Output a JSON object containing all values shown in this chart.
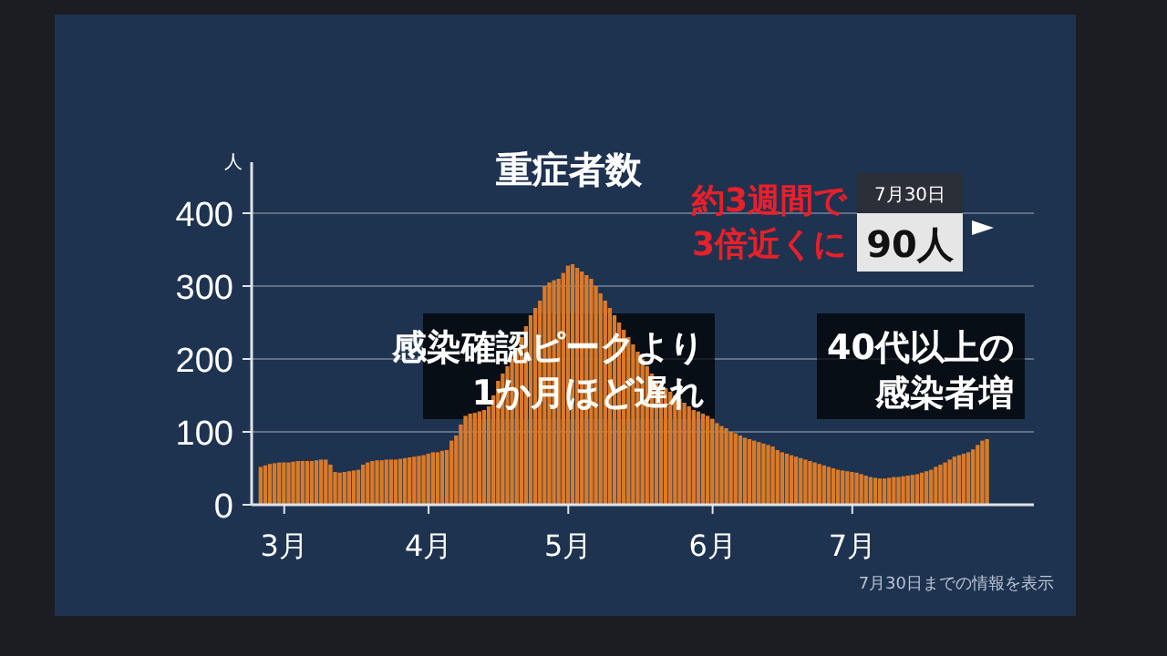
{
  "chart_data": {
    "type": "bar",
    "title": "重症者数",
    "ylabel": "人",
    "color": "#d97a2b",
    "x": [
      "--02-25",
      "--02-26",
      "--02-27",
      "--02-28",
      "--02-29",
      "--03-01",
      "--03-02",
      "--03-03",
      "--03-04",
      "--03-05",
      "--03-06",
      "--03-07",
      "--03-08",
      "--03-09",
      "--03-10",
      "--03-11",
      "--03-12",
      "--03-13",
      "--03-14",
      "--03-15",
      "--03-16",
      "--03-17",
      "--03-18",
      "--03-19",
      "--03-20",
      "--03-21",
      "--03-22",
      "--03-23",
      "--03-24",
      "--03-25",
      "--03-26",
      "--03-27",
      "--03-28",
      "--03-29",
      "--03-30",
      "--03-31",
      "--04-01",
      "--04-02",
      "--04-03",
      "--04-04",
      "--04-05",
      "--04-06",
      "--04-07",
      "--04-08",
      "--04-09",
      "--04-10",
      "--04-11",
      "--04-12",
      "--04-13",
      "--04-14",
      "--04-15",
      "--04-16",
      "--04-17",
      "--04-18",
      "--04-19",
      "--04-20",
      "--04-21",
      "--04-22",
      "--04-23",
      "--04-24",
      "--04-25",
      "--04-26",
      "--04-27",
      "--04-28",
      "--04-29",
      "--04-30",
      "--05-01",
      "--05-02",
      "--05-03",
      "--05-04",
      "--05-05",
      "--05-06",
      "--05-07",
      "--05-08",
      "--05-09",
      "--05-10",
      "--05-11",
      "--05-12",
      "--05-13",
      "--05-14",
      "--05-15",
      "--05-16",
      "--05-17",
      "--05-18",
      "--05-19",
      "--05-20",
      "--05-21",
      "--05-22",
      "--05-23",
      "--05-24",
      "--05-25",
      "--05-26",
      "--05-27",
      "--05-28",
      "--05-29",
      "--05-30",
      "--05-31",
      "--06-01",
      "--06-02",
      "--06-03",
      "--06-04",
      "--06-05",
      "--06-06",
      "--06-07",
      "--06-08",
      "--06-09",
      "--06-10",
      "--06-11",
      "--06-12",
      "--06-13",
      "--06-14",
      "--06-15",
      "--06-16",
      "--06-17",
      "--06-18",
      "--06-19",
      "--06-20",
      "--06-21",
      "--06-22",
      "--06-23",
      "--06-24",
      "--06-25",
      "--06-26",
      "--06-27",
      "--06-28",
      "--06-29",
      "--06-30",
      "--07-01",
      "--07-02",
      "--07-03",
      "--07-04",
      "--07-05",
      "--07-06",
      "--07-07",
      "--07-08",
      "--07-09",
      "--07-10",
      "--07-11",
      "--07-12",
      "--07-13",
      "--07-14",
      "--07-15",
      "--07-16",
      "--07-17",
      "--07-18",
      "--07-19",
      "--07-20",
      "--07-21",
      "--07-22",
      "--07-23",
      "--07-24",
      "--07-25",
      "--07-26",
      "--07-27",
      "--07-28",
      "--07-29",
      "--07-30"
    ],
    "values": [
      52,
      54,
      56,
      57,
      58,
      58,
      58,
      59,
      60,
      60,
      60,
      60,
      61,
      62,
      62,
      55,
      45,
      44,
      45,
      46,
      47,
      48,
      55,
      58,
      60,
      61,
      61,
      62,
      62,
      62,
      63,
      64,
      65,
      66,
      67,
      68,
      70,
      72,
      72,
      74,
      75,
      88,
      95,
      110,
      122,
      125,
      126,
      128,
      130,
      135,
      150,
      170,
      180,
      190,
      200,
      215,
      230,
      245,
      260,
      270,
      280,
      300,
      305,
      308,
      310,
      318,
      328,
      330,
      325,
      320,
      315,
      310,
      300,
      290,
      280,
      270,
      260,
      250,
      240,
      230,
      220,
      210,
      200,
      190,
      180,
      170,
      165,
      160,
      155,
      150,
      145,
      140,
      135,
      130,
      128,
      125,
      122,
      118,
      112,
      108,
      105,
      100,
      98,
      95,
      92,
      90,
      88,
      86,
      84,
      82,
      80,
      75,
      72,
      70,
      68,
      66,
      64,
      62,
      60,
      58,
      56,
      54,
      52,
      50,
      48,
      47,
      46,
      45,
      44,
      42,
      40,
      38,
      37,
      36,
      36,
      37,
      38,
      38,
      39,
      40,
      41,
      42,
      44,
      46,
      48,
      52,
      55,
      58,
      62,
      66,
      68,
      70,
      72,
      76,
      82,
      88,
      90
    ],
    "xlim": [
      "--02-23",
      "--08-09"
    ],
    "xticks": [
      {
        "value": "--03-01",
        "label": "3月"
      },
      {
        "value": "--04-01",
        "label": "4月"
      },
      {
        "value": "--05-01",
        "label": "5月"
      },
      {
        "value": "--06-01",
        "label": "6月"
      },
      {
        "value": "--07-01",
        "label": "7月"
      }
    ],
    "ylim": [
      0,
      470
    ],
    "yticks": [
      0,
      100,
      200,
      300,
      400
    ],
    "grid": "y",
    "annotations": [
      "感染確認ピークより",
      "1か月ほど遅れ",
      "40代以上の",
      "感染者増",
      "約3週間で",
      "3倍近くに",
      "7月30日",
      "90人",
      "7月30日までの情報を表示"
    ]
  }
}
